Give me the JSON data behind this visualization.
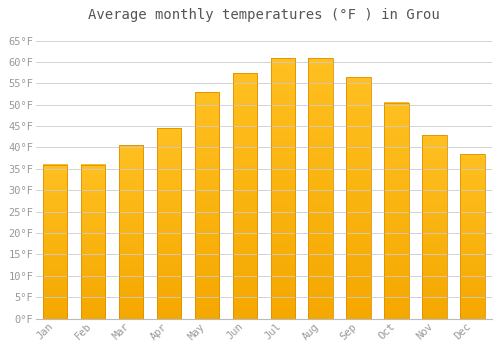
{
  "title": "Average monthly temperatures (°F ) in Grou",
  "months": [
    "Jan",
    "Feb",
    "Mar",
    "Apr",
    "May",
    "Jun",
    "Jul",
    "Aug",
    "Sep",
    "Oct",
    "Nov",
    "Dec"
  ],
  "values": [
    36,
    36,
    40.5,
    44.5,
    53,
    57.5,
    61,
    61,
    56.5,
    50.5,
    43,
    38.5
  ],
  "bar_color_top": "#FFC020",
  "bar_color_bottom": "#F5A800",
  "bar_edge_color": "#E09000",
  "background_color": "#FFFFFF",
  "grid_color": "#CCCCCC",
  "text_color": "#999999",
  "title_color": "#555555",
  "ylim": [
    0,
    68
  ],
  "yticks": [
    0,
    5,
    10,
    15,
    20,
    25,
    30,
    35,
    40,
    45,
    50,
    55,
    60,
    65
  ],
  "title_fontsize": 10,
  "tick_fontsize": 7.5
}
